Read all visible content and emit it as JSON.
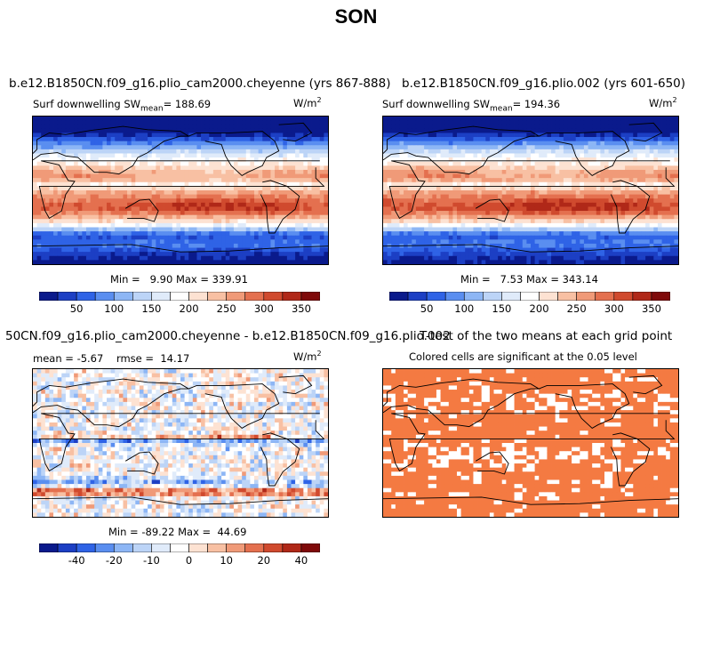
{
  "figure": {
    "title": "SON"
  },
  "chart_data": [
    {
      "type": "heatmap",
      "title": "b.e12.B1850CN.f09_g16.plio_cam2000.cheyenne (yrs 867-888)",
      "variable": "Surf downwelling SW",
      "stat_label": "mean",
      "mean": "188.69",
      "units": "W/m",
      "units_exp": "2",
      "min_label": "Min =",
      "min": "9.90",
      "max_label": "Max =",
      "max": "339.91",
      "colorbar_ticks": [
        "50",
        "100",
        "150",
        "200",
        "250",
        "300",
        "350"
      ],
      "colorbar_colors": [
        "#0a1a8c",
        "#1c3fc4",
        "#2f63e6",
        "#5a8ef0",
        "#8db6f5",
        "#bcd4f7",
        "#e0ebfa",
        "#ffffff",
        "#fde2d2",
        "#f8c0a3",
        "#f09a78",
        "#e4704f",
        "#d04a2e",
        "#b02818",
        "#7f0a0a"
      ]
    },
    {
      "type": "heatmap",
      "title": "b.e12.B1850CN.f09_g16.plio.002 (yrs 601-650)",
      "variable": "Surf downwelling SW",
      "stat_label": "mean",
      "mean": "194.36",
      "units": "W/m",
      "units_exp": "2",
      "min_label": "Min =",
      "min": "7.53",
      "max_label": "Max =",
      "max": "343.14",
      "colorbar_ticks": [
        "50",
        "100",
        "150",
        "200",
        "250",
        "300",
        "350"
      ],
      "colorbar_colors": [
        "#0a1a8c",
        "#1c3fc4",
        "#2f63e6",
        "#5a8ef0",
        "#8db6f5",
        "#bcd4f7",
        "#e0ebfa",
        "#ffffff",
        "#fde2d2",
        "#f8c0a3",
        "#f09a78",
        "#e4704f",
        "#d04a2e",
        "#b02818",
        "#7f0a0a"
      ]
    },
    {
      "type": "heatmap",
      "title": "50CN.f09_g16.plio_cam2000.cheyenne - b.e12.B1850CN.f09_g16.plio.002",
      "mean_label": "mean =",
      "mean": "-5.67",
      "rmse_label": "rmse =",
      "rmse": "14.17",
      "units": "W/m",
      "units_exp": "2",
      "min_label": "Min =",
      "min": "-89.22",
      "max_label": "Max =",
      "max": "44.69",
      "colorbar_ticks": [
        "-40",
        "-20",
        "-10",
        "0",
        "10",
        "20",
        "40"
      ],
      "colorbar_colors": [
        "#0a1a8c",
        "#1c3fc4",
        "#2f63e6",
        "#5a8ef0",
        "#8db6f5",
        "#bcd4f7",
        "#e0ebfa",
        "#ffffff",
        "#fde2d2",
        "#f8c0a3",
        "#f09a78",
        "#e4704f",
        "#d04a2e",
        "#b02818",
        "#7f0a0a"
      ]
    },
    {
      "type": "heatmap",
      "title": "T-test of the two means at each grid point",
      "subtitle": "Colored cells are significant at the 0.05 level",
      "significant_color": "#f47a42"
    }
  ]
}
